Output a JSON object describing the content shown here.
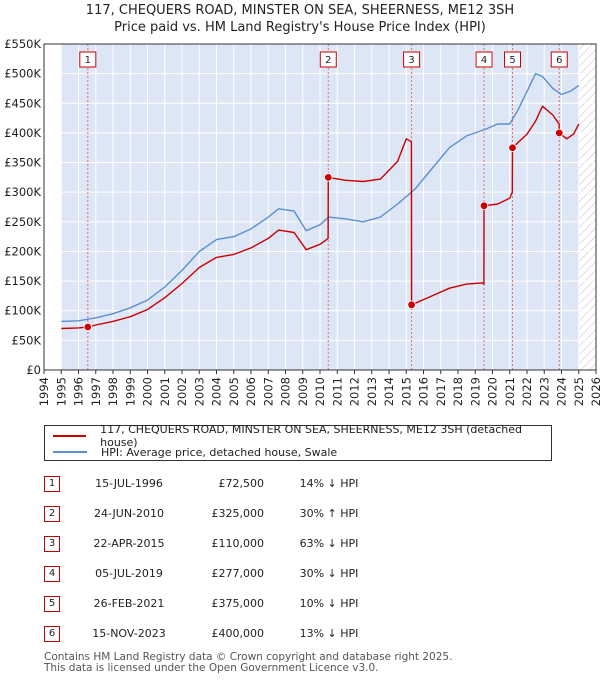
{
  "title_line1": "117, CHEQUERS ROAD, MINSTER ON SEA, SHEERNESS, ME12 3SH",
  "title_line2": "Price paid vs. HM Land Registry's House Price Index (HPI)",
  "colors": {
    "property": "#cc0000",
    "hpi": "#5b8fcf",
    "shade": "#dde6f5",
    "marker_line": "#e07070"
  },
  "legend": {
    "property_label": "117, CHEQUERS ROAD, MINSTER ON SEA, SHEERNESS, ME12 3SH (detached house)",
    "hpi_label": "HPI: Average price, detached house, Swale"
  },
  "sales": [
    {
      "num": "1",
      "date": "15-JUL-1996",
      "price": "£72,500",
      "hpi": "14% ↓ HPI"
    },
    {
      "num": "2",
      "date": "24-JUN-2010",
      "price": "£325,000",
      "hpi": "30% ↑ HPI"
    },
    {
      "num": "3",
      "date": "22-APR-2015",
      "price": "£110,000",
      "hpi": "63% ↓ HPI"
    },
    {
      "num": "4",
      "date": "05-JUL-2019",
      "price": "£277,000",
      "hpi": "30% ↓ HPI"
    },
    {
      "num": "5",
      "date": "26-FEB-2021",
      "price": "£375,000",
      "hpi": "10% ↓ HPI"
    },
    {
      "num": "6",
      "date": "15-NOV-2023",
      "price": "£400,000",
      "hpi": "13% ↓ HPI"
    }
  ],
  "footer_line1": "Contains HM Land Registry data © Crown copyright and database right 2025.",
  "footer_line2": "This data is licensed under the Open Government Licence v3.0.",
  "chart_data": {
    "type": "line",
    "title": "117, CHEQUERS ROAD, MINSTER ON SEA, SHEERNESS, ME12 3SH — Price paid vs. HM Land Registry's House Price Index (HPI)",
    "xlabel": "",
    "ylabel": "",
    "xlim": [
      1994,
      2026
    ],
    "ylim": [
      0,
      550000
    ],
    "x_ticks": [
      1994,
      1995,
      1996,
      1997,
      1998,
      1999,
      2000,
      2001,
      2002,
      2003,
      2004,
      2005,
      2006,
      2007,
      2008,
      2009,
      2010,
      2011,
      2012,
      2013,
      2014,
      2015,
      2016,
      2017,
      2018,
      2019,
      2020,
      2021,
      2022,
      2023,
      2024,
      2025,
      2026
    ],
    "y_ticks": [
      {
        "value": 0,
        "label": "£0"
      },
      {
        "value": 50000,
        "label": "£50K"
      },
      {
        "value": 100000,
        "label": "£100K"
      },
      {
        "value": 150000,
        "label": "£150K"
      },
      {
        "value": 200000,
        "label": "£200K"
      },
      {
        "value": 250000,
        "label": "£250K"
      },
      {
        "value": 300000,
        "label": "£300K"
      },
      {
        "value": 350000,
        "label": "£350K"
      },
      {
        "value": 400000,
        "label": "£400K"
      },
      {
        "value": 450000,
        "label": "£450K"
      },
      {
        "value": 500000,
        "label": "£500K"
      },
      {
        "value": 550000,
        "label": "£550K"
      }
    ],
    "grid": true,
    "hatched_region": [
      2025.0,
      2026.0
    ],
    "shaded_data_range": [
      1995.0,
      2025.0
    ],
    "sale_markers": [
      {
        "num": "1",
        "x": 1996.54,
        "price": 72500
      },
      {
        "num": "2",
        "x": 2010.48,
        "price": 325000
      },
      {
        "num": "3",
        "x": 2015.31,
        "price": 110000
      },
      {
        "num": "4",
        "x": 2019.51,
        "price": 277000
      },
      {
        "num": "5",
        "x": 2021.16,
        "price": 375000
      },
      {
        "num": "6",
        "x": 2023.87,
        "price": 400000
      }
    ],
    "series": [
      {
        "name": "HPI: Average price, detached house, Swale",
        "x": [
          1995.0,
          1996.0,
          1997.0,
          1998.0,
          1999.0,
          2000.0,
          2001.0,
          2002.0,
          2003.0,
          2004.0,
          2005.0,
          2006.0,
          2007.0,
          2007.6,
          2008.5,
          2009.2,
          2010.0,
          2010.5,
          2011.5,
          2012.5,
          2013.5,
          2014.5,
          2015.5,
          2016.5,
          2017.5,
          2018.5,
          2019.5,
          2020.3,
          2021.0,
          2021.5,
          2022.0,
          2022.5,
          2022.9,
          2023.5,
          2024.0,
          2024.5,
          2025.0
        ],
        "values": [
          82000,
          83000,
          88000,
          95000,
          105000,
          118000,
          140000,
          168000,
          200000,
          220000,
          225000,
          238000,
          258000,
          272000,
          268000,
          235000,
          245000,
          258000,
          255000,
          250000,
          258000,
          280000,
          305000,
          340000,
          375000,
          395000,
          405000,
          415000,
          415000,
          440000,
          470000,
          500000,
          495000,
          475000,
          465000,
          470000,
          480000
        ]
      },
      {
        "name": "117, CHEQUERS ROAD, MINSTER ON SEA, SHEERNESS, ME12 3SH (detached house)",
        "x": [
          1995.0,
          1996.0,
          1996.54,
          1997.0,
          1998.0,
          1999.0,
          2000.0,
          2001.0,
          2002.0,
          2003.0,
          2004.0,
          2005.0,
          2006.0,
          2007.0,
          2007.6,
          2008.5,
          2009.2,
          2010.0,
          2010.47,
          2010.48,
          2011.5,
          2012.5,
          2013.5,
          2014.5,
          2015.0,
          2015.3,
          2015.31,
          2016.5,
          2017.5,
          2018.5,
          2019.4,
          2019.5,
          2019.51,
          2020.3,
          2021.0,
          2021.15,
          2021.16,
          2022.0,
          2022.5,
          2022.9,
          2023.5,
          2023.86,
          2023.87,
          2024.3,
          2024.7,
          2025.0
        ],
        "values": [
          70000,
          71000,
          72500,
          76000,
          82000,
          90000,
          102000,
          122000,
          146000,
          173000,
          190000,
          195000,
          206000,
          222000,
          236000,
          232000,
          203000,
          212000,
          222000,
          325000,
          320000,
          318000,
          322000,
          352000,
          390000,
          385000,
          110000,
          125000,
          138000,
          145000,
          147000,
          145000,
          277000,
          280000,
          290000,
          300000,
          375000,
          398000,
          420000,
          445000,
          430000,
          415000,
          400000,
          390000,
          398000,
          415000
        ]
      }
    ]
  }
}
